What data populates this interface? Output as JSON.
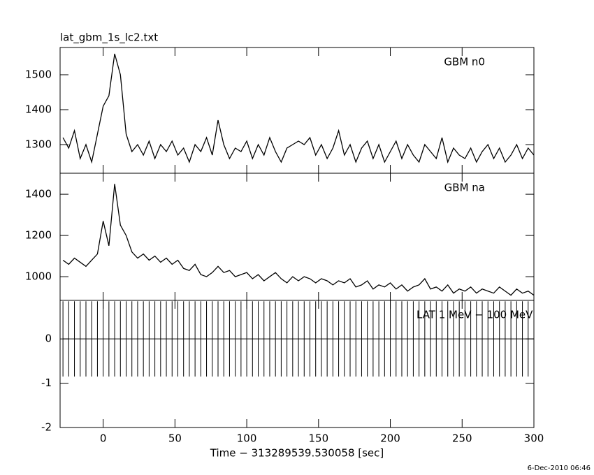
{
  "footer": "6-Dec-2010 06:46",
  "chart_data": [
    {
      "type": "line",
      "title": "lat_gbm_1s_lc2.txt",
      "label": "GBM n0",
      "xlim": [
        -30,
        300
      ],
      "xticks": [
        0,
        50,
        100,
        150,
        200,
        250,
        300
      ],
      "xtick_labels": false,
      "ylim": [
        1218,
        1578
      ],
      "yticks": [
        1300,
        1400,
        1500
      ],
      "x": [
        -28,
        -24,
        -20,
        -16,
        -12,
        -8,
        -4,
        0,
        4,
        8,
        12,
        16,
        20,
        24,
        28,
        32,
        36,
        40,
        44,
        48,
        52,
        56,
        60,
        64,
        68,
        72,
        76,
        80,
        84,
        88,
        92,
        96,
        100,
        104,
        108,
        112,
        116,
        120,
        124,
        128,
        132,
        136,
        140,
        144,
        148,
        152,
        156,
        160,
        164,
        168,
        172,
        176,
        180,
        184,
        188,
        192,
        196,
        200,
        204,
        208,
        212,
        216,
        220,
        224,
        228,
        232,
        236,
        240,
        244,
        248,
        252,
        256,
        260,
        264,
        268,
        272,
        276,
        280,
        284,
        288,
        292,
        296,
        300
      ],
      "series": [
        {
          "color": "#000000",
          "values": [
            1320,
            1290,
            1340,
            1260,
            1300,
            1250,
            1330,
            1410,
            1440,
            1560,
            1500,
            1330,
            1280,
            1300,
            1270,
            1310,
            1260,
            1300,
            1280,
            1310,
            1270,
            1290,
            1250,
            1300,
            1280,
            1320,
            1270,
            1370,
            1300,
            1260,
            1290,
            1280,
            1310,
            1260,
            1300,
            1270,
            1320,
            1280,
            1250,
            1290,
            1300,
            1310,
            1300,
            1320,
            1270,
            1300,
            1260,
            1290,
            1340,
            1270,
            1300,
            1250,
            1290,
            1310,
            1260,
            1300,
            1250,
            1280,
            1310,
            1260,
            1300,
            1270,
            1250,
            1300,
            1280,
            1260,
            1320,
            1250,
            1290,
            1270,
            1260,
            1290,
            1250,
            1280,
            1300,
            1260,
            1290,
            1250,
            1270,
            1300,
            1260,
            1290,
            1270
          ]
        }
      ]
    },
    {
      "type": "line",
      "label": "GBM na",
      "xlim": [
        -30,
        300
      ],
      "xticks": [
        0,
        50,
        100,
        150,
        200,
        250,
        300
      ],
      "xtick_labels": false,
      "ylim": [
        885,
        1502
      ],
      "yticks": [
        1000,
        1200,
        1400
      ],
      "x": [
        -28,
        -24,
        -20,
        -16,
        -12,
        -8,
        -4,
        0,
        4,
        8,
        12,
        16,
        20,
        24,
        28,
        32,
        36,
        40,
        44,
        48,
        52,
        56,
        60,
        64,
        68,
        72,
        76,
        80,
        84,
        88,
        92,
        96,
        100,
        104,
        108,
        112,
        116,
        120,
        124,
        128,
        132,
        136,
        140,
        144,
        148,
        152,
        156,
        160,
        164,
        168,
        172,
        176,
        180,
        184,
        188,
        192,
        196,
        200,
        204,
        208,
        212,
        216,
        220,
        224,
        228,
        232,
        236,
        240,
        244,
        248,
        252,
        256,
        260,
        264,
        268,
        272,
        276,
        280,
        284,
        288,
        292,
        296,
        300
      ],
      "series": [
        {
          "color": "#000000",
          "values": [
            1080,
            1060,
            1090,
            1070,
            1050,
            1080,
            1110,
            1270,
            1150,
            1450,
            1250,
            1200,
            1120,
            1090,
            1110,
            1080,
            1100,
            1070,
            1090,
            1060,
            1080,
            1040,
            1030,
            1060,
            1010,
            1000,
            1020,
            1050,
            1020,
            1030,
            1000,
            1010,
            1020,
            990,
            1010,
            980,
            1000,
            1020,
            990,
            970,
            1000,
            980,
            1000,
            990,
            970,
            990,
            980,
            960,
            980,
            970,
            990,
            950,
            960,
            980,
            940,
            960,
            950,
            970,
            940,
            960,
            930,
            950,
            960,
            990,
            940,
            950,
            930,
            960,
            920,
            940,
            930,
            950,
            920,
            940,
            930,
            920,
            950,
            930,
            910,
            940,
            920,
            930,
            910
          ]
        }
      ]
    },
    {
      "type": "errorbar",
      "label": "LAT 1 MeV − 100 MeV",
      "xlim": [
        -30,
        300
      ],
      "xticks": [
        0,
        50,
        100,
        150,
        200,
        250,
        300
      ],
      "xtick_labels": true,
      "xlabel": "Time − 313289539.530058 [sec]",
      "ylim": [
        -2,
        0.87
      ],
      "yticks": [
        -2,
        -1,
        0
      ],
      "x": [
        -28,
        -24,
        -20,
        -16,
        -12,
        -8,
        -4,
        0,
        4,
        8,
        12,
        16,
        20,
        24,
        28,
        32,
        36,
        40,
        44,
        48,
        52,
        56,
        60,
        64,
        68,
        72,
        76,
        80,
        84,
        88,
        92,
        96,
        100,
        104,
        108,
        112,
        116,
        120,
        124,
        128,
        132,
        136,
        140,
        144,
        148,
        152,
        156,
        160,
        164,
        168,
        172,
        176,
        180,
        184,
        188,
        192,
        196,
        200,
        204,
        208,
        212,
        216,
        220,
        224,
        228,
        232,
        236,
        240,
        244,
        248,
        252,
        256,
        260,
        264,
        268,
        272,
        276,
        280,
        284,
        288,
        292,
        296,
        300
      ],
      "series": [
        {
          "color": "#000000",
          "values": [
            0,
            0,
            0,
            0,
            0,
            0,
            0,
            0,
            0,
            0,
            0,
            0,
            0,
            0,
            0,
            0,
            0,
            0,
            0,
            0,
            0,
            0,
            0,
            0,
            0,
            0,
            0,
            0,
            0,
            0,
            0,
            0,
            0,
            0,
            0,
            0,
            0,
            0,
            0,
            0,
            0,
            0,
            0,
            0,
            0,
            0,
            0,
            0,
            0,
            0,
            0,
            0,
            0,
            0,
            0,
            0,
            0,
            0,
            0,
            0,
            0,
            0,
            0,
            0,
            0,
            0,
            0,
            0,
            0,
            0,
            0,
            0,
            0,
            0,
            0,
            0,
            0,
            0,
            0,
            0,
            0,
            0,
            0
          ],
          "errors": [
            0.85,
            0.85,
            0.85,
            0.85,
            0.85,
            0.85,
            0.85,
            0.85,
            0.85,
            0.85,
            0.85,
            0.85,
            0.85,
            0.85,
            0.85,
            0.85,
            0.85,
            0.85,
            0.85,
            0.85,
            0.85,
            0.85,
            0.85,
            0.85,
            0.85,
            0.85,
            0.85,
            0.85,
            0.85,
            0.85,
            0.85,
            0.85,
            0.85,
            0.85,
            0.85,
            0.85,
            0.85,
            0.85,
            0.85,
            0.85,
            0.85,
            0.85,
            0.85,
            0.85,
            0.85,
            0.85,
            0.85,
            0.85,
            0.85,
            0.85,
            0.85,
            0.85,
            0.85,
            0.85,
            0.85,
            0.85,
            0.85,
            0.85,
            0.85,
            0.85,
            0.85,
            0.85,
            0.85,
            0.85,
            0.85,
            0.85,
            0.85,
            0.85,
            0.85,
            0.85,
            0.85,
            0.85,
            0.85,
            0.85,
            0.85,
            0.85,
            0.85,
            0.85,
            0.85,
            0.85,
            0.85,
            0.85,
            0.85
          ]
        }
      ]
    }
  ]
}
